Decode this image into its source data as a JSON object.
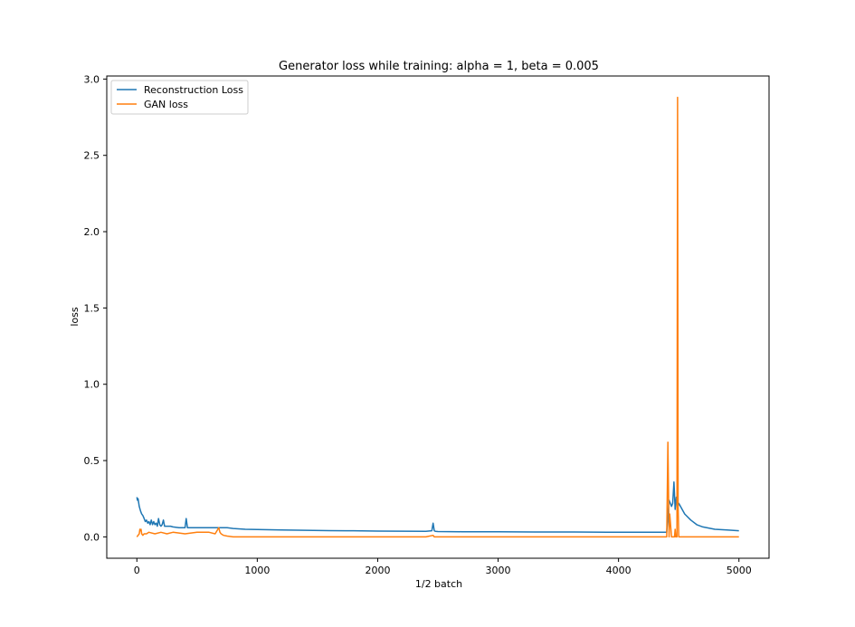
{
  "chart_data": {
    "type": "line",
    "title": "Generator loss while training: alpha = 1, beta = 0.005",
    "xlabel": "1/2 batch",
    "ylabel": "loss",
    "xlim": [
      -250,
      5250
    ],
    "ylim": [
      -0.14,
      3.02
    ],
    "xticks": [
      0,
      1000,
      2000,
      3000,
      4000,
      5000
    ],
    "yticks": [
      0.0,
      0.5,
      1.0,
      1.5,
      2.0,
      2.5,
      3.0
    ],
    "xtick_labels": [
      "0",
      "1000",
      "2000",
      "3000",
      "4000",
      "5000"
    ],
    "ytick_labels": [
      "0.0",
      "0.5",
      "1.0",
      "1.5",
      "2.0",
      "2.5",
      "3.0"
    ],
    "grid": false,
    "legend_position": "top-left",
    "series": [
      {
        "name": "Reconstruction Loss",
        "color": "#1f77b4",
        "x": [
          0,
          5,
          10,
          20,
          30,
          40,
          50,
          60,
          70,
          80,
          90,
          100,
          110,
          120,
          130,
          140,
          150,
          160,
          170,
          180,
          190,
          200,
          210,
          220,
          230,
          240,
          250,
          280,
          300,
          350,
          400,
          410,
          420,
          430,
          450,
          500,
          550,
          600,
          650,
          700,
          750,
          800,
          900,
          1000,
          1200,
          1400,
          1600,
          1800,
          2000,
          2200,
          2400,
          2450,
          2460,
          2470,
          2480,
          2500,
          2700,
          3000,
          3300,
          3600,
          3900,
          4200,
          4400,
          4420,
          4440,
          4450,
          4460,
          4470,
          4480,
          4490,
          4500,
          4550,
          4600,
          4650,
          4700,
          4800,
          4900,
          5000
        ],
        "y": [
          0.26,
          0.24,
          0.25,
          0.2,
          0.17,
          0.15,
          0.14,
          0.12,
          0.1,
          0.11,
          0.09,
          0.1,
          0.08,
          0.11,
          0.08,
          0.1,
          0.08,
          0.09,
          0.07,
          0.12,
          0.08,
          0.07,
          0.08,
          0.11,
          0.07,
          0.07,
          0.07,
          0.07,
          0.065,
          0.06,
          0.06,
          0.12,
          0.06,
          0.06,
          0.06,
          0.06,
          0.06,
          0.06,
          0.06,
          0.06,
          0.06,
          0.055,
          0.05,
          0.048,
          0.045,
          0.043,
          0.041,
          0.04,
          0.038,
          0.037,
          0.036,
          0.04,
          0.09,
          0.04,
          0.036,
          0.035,
          0.034,
          0.033,
          0.032,
          0.032,
          0.031,
          0.03,
          0.03,
          0.24,
          0.2,
          0.22,
          0.36,
          0.18,
          0.26,
          0.2,
          0.22,
          0.15,
          0.11,
          0.08,
          0.065,
          0.05,
          0.045,
          0.04
        ]
      },
      {
        "name": "GAN loss",
        "color": "#ff7f0e",
        "x": [
          0,
          10,
          20,
          25,
          30,
          35,
          40,
          50,
          60,
          80,
          100,
          150,
          200,
          250,
          300,
          400,
          500,
          600,
          650,
          680,
          690,
          700,
          720,
          750,
          800,
          1000,
          1500,
          2000,
          2400,
          2460,
          2470,
          2480,
          2500,
          3000,
          3500,
          4000,
          4380,
          4400,
          4410,
          4420,
          4425,
          4430,
          4440,
          4450,
          4460,
          4465,
          4470,
          4475,
          4480,
          4485,
          4490,
          4495,
          4500,
          4600,
          5000
        ],
        "y": [
          0.0,
          0.01,
          0.02,
          0.05,
          0.04,
          0.05,
          0.02,
          0.01,
          0.02,
          0.02,
          0.03,
          0.02,
          0.03,
          0.02,
          0.03,
          0.02,
          0.03,
          0.03,
          0.02,
          0.06,
          0.03,
          0.02,
          0.01,
          0.005,
          0.0,
          0.0,
          0.0,
          0.0,
          0.0,
          0.01,
          0.0,
          0.0,
          0.0,
          0.0,
          0.0,
          0.0,
          0.0,
          0.0,
          0.62,
          0.0,
          0.15,
          0.1,
          0.0,
          0.0,
          0.0,
          0.0,
          0.05,
          0.0,
          0.0,
          0.0,
          2.88,
          0.2,
          0.0,
          0.0,
          0.0
        ]
      }
    ]
  }
}
